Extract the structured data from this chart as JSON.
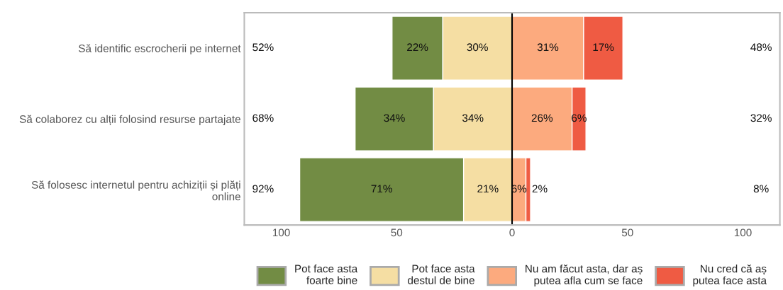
{
  "chart_data": {
    "type": "bar",
    "orientation": "horizontal",
    "stacked": true,
    "categories": [
      "Să identific escrocherii pe internet",
      "Să colaborez cu alții folosind resurse partajate",
      "Să folosesc internetul pentru achiziții și plăți\nonline"
    ],
    "series": [
      {
        "name": "Pot face asta\nfoarte bine",
        "color": "#728c44",
        "values": [
          22,
          34,
          71
        ],
        "base": [
          -52,
          -68,
          -92
        ],
        "value_labels": [
          "22%",
          "34%",
          "71%"
        ]
      },
      {
        "name": "Pot face asta\ndestul de bine",
        "color": "#f5dea3",
        "values": [
          30,
          34,
          21
        ],
        "base": [
          -30,
          -34,
          -21
        ],
        "value_labels": [
          "30%",
          "34%",
          "21%"
        ]
      },
      {
        "name": "Nu am făcut asta, dar aș\nputea afla cum se face",
        "color": "#fcaa7e",
        "values": [
          31,
          26,
          6
        ],
        "base": [
          0,
          0,
          0
        ],
        "value_labels": [
          "31%",
          "26%",
          "6%"
        ]
      },
      {
        "name": "Nu cred că aș\nputea face asta",
        "color": "#ef5b43",
        "values": [
          17,
          6,
          2
        ],
        "base": [
          31,
          26,
          6
        ],
        "value_labels": [
          "17%",
          "6%",
          "2%"
        ]
      }
    ],
    "xlim": [
      -116,
      116
    ],
    "xticks": [
      {
        "value": -100,
        "label": "100"
      },
      {
        "value": -50,
        "label": "50"
      },
      0,
      50,
      100
    ],
    "ref_lines": [
      {
        "axis": "x",
        "value": 0,
        "color": "#000000"
      }
    ],
    "annotations": [
      "52%",
      "68%",
      "92%",
      "48%",
      "32%",
      "8%"
    ],
    "legend": "bottom"
  }
}
